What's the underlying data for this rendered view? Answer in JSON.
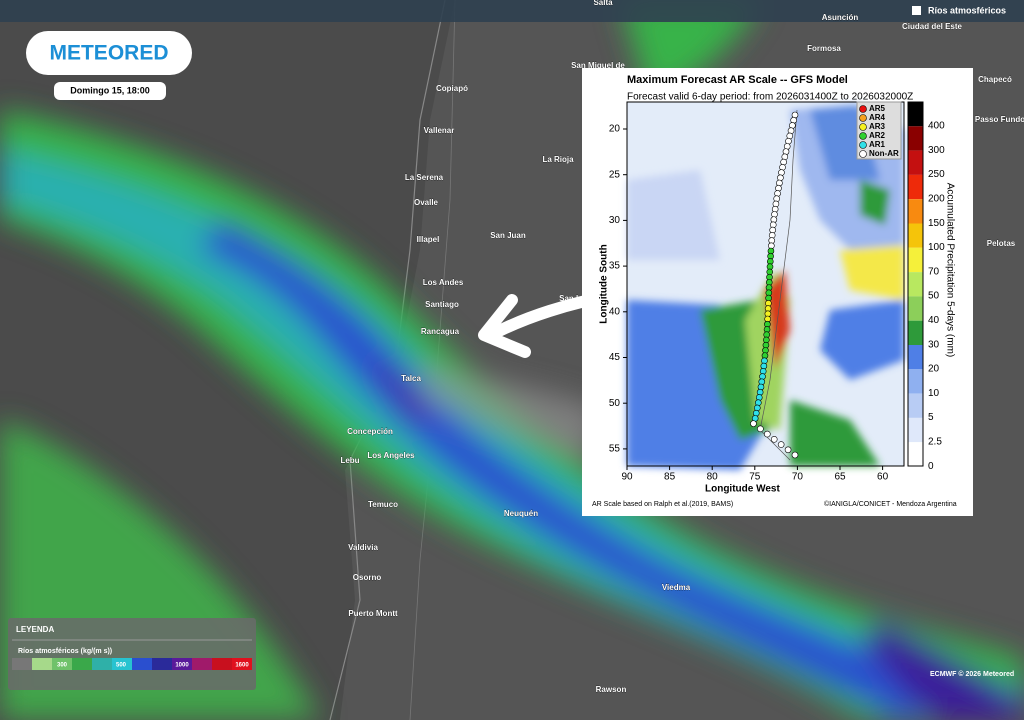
{
  "header": {
    "layer": "Ríos atmosféricos",
    "logo": "METEORED",
    "date": "Domingo 15, 18:00"
  },
  "cities": [
    "Salta",
    "Asunción",
    "Ciudad del Este",
    "Formosa",
    "San Miguel de",
    "Chapecó",
    "Copiapó",
    "Vallenar",
    "La Rioja",
    "La Serena",
    "Ovalle",
    "Illapel",
    "San Juan",
    "Los Andes",
    "Santiago",
    "San L",
    "Rancagua",
    "Talca",
    "Concepción",
    "Lebu",
    "Los Angeles",
    "Temuco",
    "Neuquén",
    "Valdivia",
    "Osorno",
    "Puerto Montt",
    "Viedma",
    "Rawson",
    "Passo Fundo",
    "Pelotas"
  ],
  "legend": {
    "title": "LEYENDA",
    "subtitle": "Ríos atmosféricos (kg/(m s))",
    "ticks": [
      "300",
      "500",
      "1000",
      "1600"
    ]
  },
  "footer": "ECMWF © 2026 Meteored",
  "inset": {
    "title": "Maximum Forecast AR Scale -- GFS Model",
    "subtitle": "Forecast valid 6-day period: from 2026031400Z to 2026032000Z",
    "y_label": "Longitude South",
    "x_label": "Longitude West",
    "x_ticks": [
      "90",
      "85",
      "80",
      "75",
      "70",
      "65",
      "60"
    ],
    "y_ticks": [
      "20",
      "25",
      "30",
      "35",
      "40",
      "45",
      "50",
      "55"
    ],
    "colorbar_label": "Accumulated Precipitation 5-days (mm)",
    "colorbar_ticks": [
      "400",
      "300",
      "250",
      "200",
      "150",
      "100",
      "70",
      "50",
      "40",
      "30",
      "20",
      "10",
      "5",
      "2.5",
      "0"
    ],
    "ar_legend": [
      "AR5",
      "AR4",
      "AR3",
      "AR2",
      "AR1",
      "Non-AR"
    ],
    "note_left": "AR Scale based on Ralph et al.(2019, BAMS)",
    "note_right": "©IANIGLA/CONICET - Mendoza Argentina"
  }
}
